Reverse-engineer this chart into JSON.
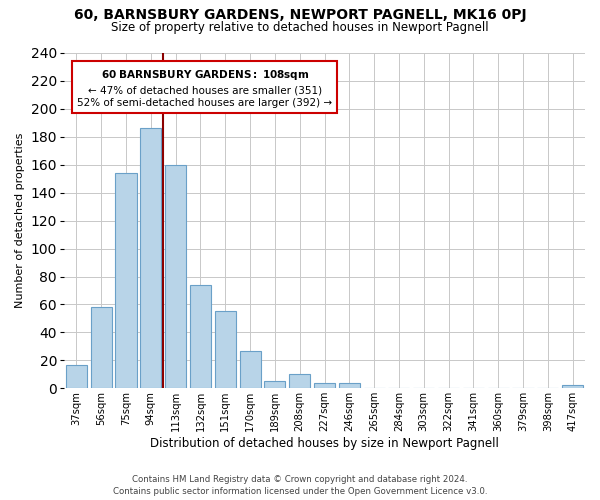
{
  "title": "60, BARNSBURY GARDENS, NEWPORT PAGNELL, MK16 0PJ",
  "subtitle": "Size of property relative to detached houses in Newport Pagnell",
  "xlabel": "Distribution of detached houses by size in Newport Pagnell",
  "ylabel": "Number of detached properties",
  "bar_labels": [
    "37sqm",
    "56sqm",
    "75sqm",
    "94sqm",
    "113sqm",
    "132sqm",
    "151sqm",
    "170sqm",
    "189sqm",
    "208sqm",
    "227sqm",
    "246sqm",
    "265sqm",
    "284sqm",
    "303sqm",
    "322sqm",
    "341sqm",
    "360sqm",
    "379sqm",
    "398sqm",
    "417sqm"
  ],
  "bar_values": [
    17,
    58,
    154,
    186,
    160,
    74,
    55,
    27,
    5,
    10,
    4,
    4,
    0,
    0,
    0,
    0,
    0,
    0,
    0,
    0,
    2
  ],
  "bar_color": "#b8d4e8",
  "bar_edge_color": "#6aa0c8",
  "vline_x_index": 4,
  "vline_color": "#8b0000",
  "ylim": [
    0,
    240
  ],
  "yticks": [
    0,
    20,
    40,
    60,
    80,
    100,
    120,
    140,
    160,
    180,
    200,
    220,
    240
  ],
  "annotation_title": "60 BARNSBURY GARDENS: 108sqm",
  "annotation_line1": "← 47% of detached houses are smaller (351)",
  "annotation_line2": "52% of semi-detached houses are larger (392) →",
  "annotation_box_color": "#ffffff",
  "annotation_box_edge": "#cc0000",
  "footer1": "Contains HM Land Registry data © Crown copyright and database right 2024.",
  "footer2": "Contains public sector information licensed under the Open Government Licence v3.0.",
  "background_color": "#ffffff",
  "grid_color": "#c8c8c8"
}
